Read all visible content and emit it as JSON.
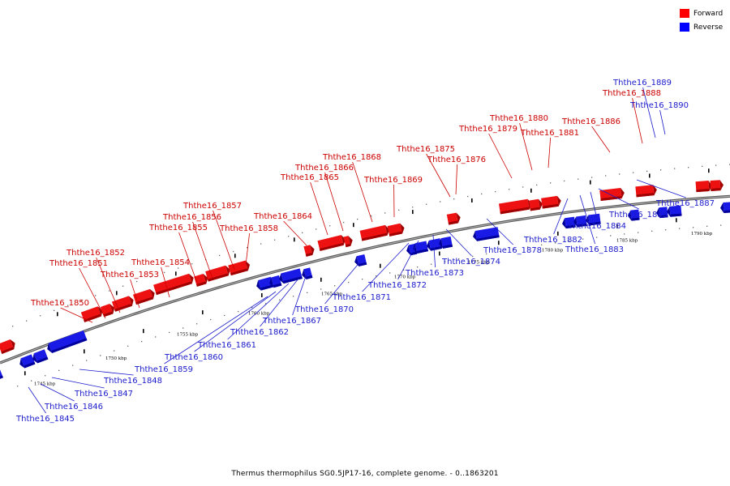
{
  "legend": {
    "forward_label": "Forward",
    "reverse_label": "Reverse",
    "forward_color": "#ff0000",
    "reverse_color": "#0000ff"
  },
  "caption": "Thermus thermophilus SG0.5JP17-16, complete genome. - 0..1863201",
  "colors": {
    "forward": "#ee1111",
    "forward_dark": "#a00000",
    "reverse": "#1a1ae6",
    "reverse_dark": "#00009a",
    "forward_label": "#cc0000",
    "reverse_label": "#1a1acc",
    "backbone": "#888888"
  },
  "scale_labels": [
    "1745 kbp",
    "1750 kbp",
    "1755 kbp",
    "1760 kbp",
    "1765 kbp",
    "1770 kbp",
    "1775 kbp",
    "1780 kbp",
    "1785 kbp",
    "1790 kbp"
  ],
  "genes": {
    "forward": [
      "Ththe16_1850",
      "Ththe16_1851",
      "Ththe16_1852",
      "Ththe16_1853",
      "Ththe16_1854",
      "Ththe16_1855",
      "Ththe16_1856",
      "Ththe16_1857",
      "Ththe16_1858",
      "Ththe16_1864",
      "Ththe16_1865",
      "Ththe16_1866",
      "Ththe16_1868",
      "Ththe16_1869",
      "Ththe16_1875",
      "Ththe16_1876",
      "Ththe16_1879",
      "Ththe16_1880",
      "Ththe16_1881",
      "Ththe16_1886",
      "Ththe16_1888"
    ],
    "reverse": [
      "Ththe16_1845",
      "Ththe16_1846",
      "Ththe16_1847",
      "Ththe16_1848",
      "Ththe16_1859",
      "Ththe16_1860",
      "Ththe16_1861",
      "Ththe16_1862",
      "Ththe16_1867",
      "Ththe16_1870",
      "Ththe16_1871",
      "Ththe16_1872",
      "Ththe16_1873",
      "Ththe16_1874",
      "Ththe16_1878",
      "Ththe16_1882",
      "Ththe16_1883",
      "Ththe16_1884",
      "Ththe16_1885",
      "Ththe16_1887",
      "Ththe16_1889",
      "Ththe16_1890"
    ]
  }
}
